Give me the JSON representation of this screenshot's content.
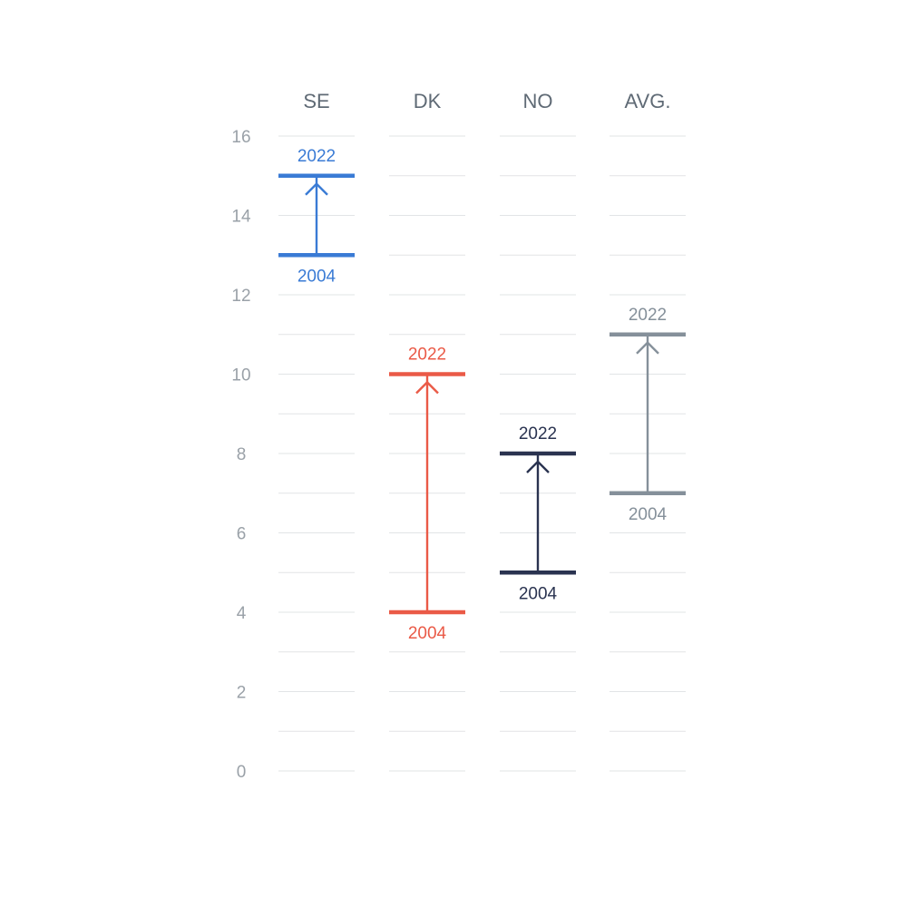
{
  "chart_data": {
    "type": "dumbbell",
    "categories": [
      "SE",
      "DK",
      "NO",
      "AVG."
    ],
    "series": [
      {
        "category": "SE",
        "start_label": "2004",
        "start": 13,
        "end_label": "2022",
        "end": 15,
        "color": "#3a7bd5"
      },
      {
        "category": "DK",
        "start_label": "2004",
        "start": 4,
        "end_label": "2022",
        "end": 10,
        "color": "#ea5a47"
      },
      {
        "category": "NO",
        "start_label": "2004",
        "start": 5,
        "end_label": "2022",
        "end": 8,
        "color": "#2a3350"
      },
      {
        "category": "AVG.",
        "start_label": "2004",
        "start": 7,
        "end_label": "2022",
        "end": 11,
        "color": "#85909a"
      }
    ],
    "yticks": [
      "0",
      "2",
      "4",
      "6",
      "8",
      "10",
      "12",
      "14",
      "16"
    ],
    "ylim": [
      0,
      16
    ],
    "grid_step": 1,
    "grid": true,
    "legend": "none"
  }
}
